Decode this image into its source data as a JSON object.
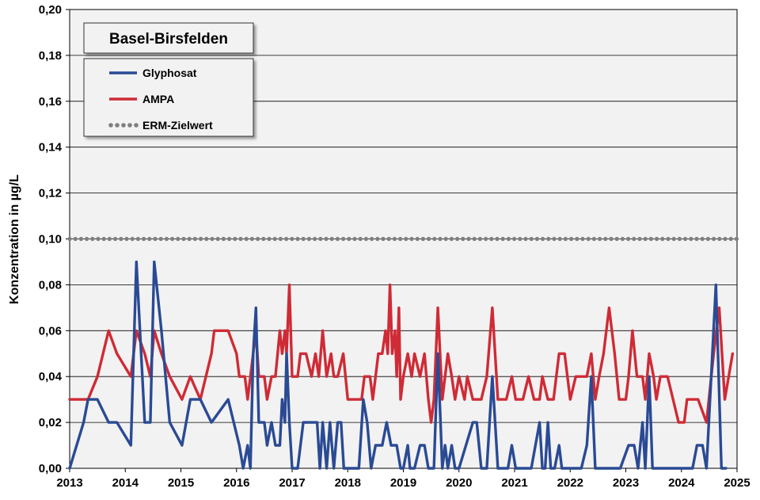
{
  "chart_data": {
    "type": "line",
    "title": "Basel-Birsfelden",
    "ylabel": "Konzentration in µg/L",
    "xlabel": "",
    "xlim": [
      2013,
      2025
    ],
    "ylim": [
      0,
      0.2
    ],
    "x_ticks": [
      "2013",
      "2014",
      "2015",
      "2016",
      "2017",
      "2018",
      "2019",
      "2020",
      "2021",
      "2022",
      "2023",
      "2024",
      "2025"
    ],
    "y_ticks": [
      "0,00",
      "0,02",
      "0,04",
      "0,06",
      "0,08",
      "0,10",
      "0,12",
      "0,14",
      "0,16",
      "0,18",
      "0,20"
    ],
    "grid": "horizontal",
    "legend_position": "top-left",
    "series": [
      {
        "name": "Glyphosat",
        "color": "#2a4a94",
        "style": "solid",
        "points": [
          [
            2013.0,
            0
          ],
          [
            2013.25,
            0.02
          ],
          [
            2013.33,
            0.03
          ],
          [
            2013.5,
            0.03
          ],
          [
            2013.7,
            0.02
          ],
          [
            2013.85,
            0.02
          ],
          [
            2014.1,
            0.01
          ],
          [
            2014.2,
            0.09
          ],
          [
            2014.35,
            0.02
          ],
          [
            2014.45,
            0.02
          ],
          [
            2014.52,
            0.09
          ],
          [
            2014.65,
            0.06
          ],
          [
            2014.8,
            0.02
          ],
          [
            2015.02,
            0.01
          ],
          [
            2015.17,
            0.03
          ],
          [
            2015.35,
            0.03
          ],
          [
            2015.55,
            0.02
          ],
          [
            2015.85,
            0.03
          ],
          [
            2016.05,
            0.01
          ],
          [
            2016.12,
            0
          ],
          [
            2016.2,
            0.01
          ],
          [
            2016.25,
            0
          ],
          [
            2016.3,
            0.05
          ],
          [
            2016.35,
            0.07
          ],
          [
            2016.4,
            0.02
          ],
          [
            2016.5,
            0.02
          ],
          [
            2016.55,
            0.01
          ],
          [
            2016.63,
            0.02
          ],
          [
            2016.7,
            0.01
          ],
          [
            2016.78,
            0.01
          ],
          [
            2016.82,
            0.03
          ],
          [
            2016.87,
            0.02
          ],
          [
            2016.9,
            0.05
          ],
          [
            2016.95,
            0.02
          ],
          [
            2017.0,
            0
          ],
          [
            2017.1,
            0
          ],
          [
            2017.2,
            0.02
          ],
          [
            2017.45,
            0.02
          ],
          [
            2017.5,
            0
          ],
          [
            2017.55,
            0.02
          ],
          [
            2017.62,
            0
          ],
          [
            2017.68,
            0.02
          ],
          [
            2017.75,
            0
          ],
          [
            2017.82,
            0.02
          ],
          [
            2017.88,
            0.02
          ],
          [
            2017.93,
            0
          ],
          [
            2018.0,
            0
          ],
          [
            2018.2,
            0
          ],
          [
            2018.28,
            0.03
          ],
          [
            2018.35,
            0.02
          ],
          [
            2018.42,
            0
          ],
          [
            2018.5,
            0.01
          ],
          [
            2018.62,
            0.01
          ],
          [
            2018.7,
            0.02
          ],
          [
            2018.78,
            0.01
          ],
          [
            2018.88,
            0.01
          ],
          [
            2018.95,
            0
          ],
          [
            2019.0,
            0
          ],
          [
            2019.08,
            0.01
          ],
          [
            2019.12,
            0
          ],
          [
            2019.2,
            0
          ],
          [
            2019.3,
            0.01
          ],
          [
            2019.38,
            0.01
          ],
          [
            2019.45,
            0
          ],
          [
            2019.55,
            0
          ],
          [
            2019.62,
            0.05
          ],
          [
            2019.7,
            0
          ],
          [
            2019.75,
            0.01
          ],
          [
            2019.8,
            0
          ],
          [
            2019.87,
            0.01
          ],
          [
            2019.93,
            0
          ],
          [
            2020.0,
            0
          ],
          [
            2020.25,
            0.02
          ],
          [
            2020.32,
            0.02
          ],
          [
            2020.4,
            0
          ],
          [
            2020.5,
            0
          ],
          [
            2020.6,
            0.04
          ],
          [
            2020.7,
            0
          ],
          [
            2020.88,
            0
          ],
          [
            2020.95,
            0.01
          ],
          [
            2021.02,
            0
          ],
          [
            2021.3,
            0
          ],
          [
            2021.45,
            0.02
          ],
          [
            2021.5,
            0
          ],
          [
            2021.55,
            0
          ],
          [
            2021.6,
            0.02
          ],
          [
            2021.65,
            0
          ],
          [
            2021.72,
            0
          ],
          [
            2021.8,
            0.01
          ],
          [
            2021.85,
            0
          ],
          [
            2022.0,
            0
          ],
          [
            2022.1,
            0
          ],
          [
            2022.15,
            0
          ],
          [
            2022.2,
            0
          ],
          [
            2022.3,
            0.01
          ],
          [
            2022.38,
            0.04
          ],
          [
            2022.45,
            0
          ],
          [
            2022.5,
            0
          ],
          [
            2022.7,
            0
          ],
          [
            2022.9,
            0
          ],
          [
            2023.05,
            0.01
          ],
          [
            2023.15,
            0.01
          ],
          [
            2023.22,
            0
          ],
          [
            2023.3,
            0.02
          ],
          [
            2023.35,
            0
          ],
          [
            2023.42,
            0.04
          ],
          [
            2023.48,
            0
          ],
          [
            2023.6,
            0
          ],
          [
            2023.8,
            0
          ],
          [
            2024.0,
            0
          ],
          [
            2024.2,
            0
          ],
          [
            2024.28,
            0.01
          ],
          [
            2024.38,
            0.01
          ],
          [
            2024.45,
            0
          ],
          [
            2024.62,
            0.08
          ],
          [
            2024.72,
            0
          ],
          [
            2024.8,
            0
          ]
        ]
      },
      {
        "name": "AMPA",
        "color": "#cf2b36",
        "style": "solid",
        "points": [
          [
            2013.0,
            0.03
          ],
          [
            2013.33,
            0.03
          ],
          [
            2013.5,
            0.04
          ],
          [
            2013.7,
            0.06
          ],
          [
            2013.85,
            0.05
          ],
          [
            2014.1,
            0.04
          ],
          [
            2014.2,
            0.06
          ],
          [
            2014.35,
            0.05
          ],
          [
            2014.45,
            0.04
          ],
          [
            2014.52,
            0.06
          ],
          [
            2014.65,
            0.05
          ],
          [
            2014.8,
            0.04
          ],
          [
            2015.02,
            0.03
          ],
          [
            2015.17,
            0.04
          ],
          [
            2015.35,
            0.03
          ],
          [
            2015.55,
            0.05
          ],
          [
            2015.6,
            0.06
          ],
          [
            2015.85,
            0.06
          ],
          [
            2016.0,
            0.05
          ],
          [
            2016.05,
            0.04
          ],
          [
            2016.15,
            0.04
          ],
          [
            2016.2,
            0.03
          ],
          [
            2016.3,
            0.05
          ],
          [
            2016.35,
            0.06
          ],
          [
            2016.4,
            0.04
          ],
          [
            2016.5,
            0.04
          ],
          [
            2016.55,
            0.03
          ],
          [
            2016.63,
            0.04
          ],
          [
            2016.7,
            0.04
          ],
          [
            2016.78,
            0.06
          ],
          [
            2016.82,
            0.05
          ],
          [
            2016.87,
            0.06
          ],
          [
            2016.9,
            0.05
          ],
          [
            2016.95,
            0.08
          ],
          [
            2017.0,
            0.04
          ],
          [
            2017.1,
            0.04
          ],
          [
            2017.15,
            0.05
          ],
          [
            2017.25,
            0.05
          ],
          [
            2017.35,
            0.04
          ],
          [
            2017.42,
            0.05
          ],
          [
            2017.48,
            0.04
          ],
          [
            2017.55,
            0.06
          ],
          [
            2017.62,
            0.04
          ],
          [
            2017.7,
            0.05
          ],
          [
            2017.75,
            0.04
          ],
          [
            2017.82,
            0.04
          ],
          [
            2017.92,
            0.05
          ],
          [
            2018.0,
            0.03
          ],
          [
            2018.25,
            0.03
          ],
          [
            2018.3,
            0.04
          ],
          [
            2018.4,
            0.04
          ],
          [
            2018.45,
            0.03
          ],
          [
            2018.55,
            0.05
          ],
          [
            2018.62,
            0.05
          ],
          [
            2018.68,
            0.06
          ],
          [
            2018.72,
            0.05
          ],
          [
            2018.76,
            0.08
          ],
          [
            2018.8,
            0.05
          ],
          [
            2018.85,
            0.06
          ],
          [
            2018.88,
            0.04
          ],
          [
            2018.92,
            0.07
          ],
          [
            2018.95,
            0.03
          ],
          [
            2019.0,
            0.04
          ],
          [
            2019.08,
            0.05
          ],
          [
            2019.15,
            0.04
          ],
          [
            2019.2,
            0.05
          ],
          [
            2019.3,
            0.04
          ],
          [
            2019.38,
            0.05
          ],
          [
            2019.45,
            0.03
          ],
          [
            2019.5,
            0.02
          ],
          [
            2019.55,
            0.03
          ],
          [
            2019.62,
            0.07
          ],
          [
            2019.7,
            0.03
          ],
          [
            2019.75,
            0.04
          ],
          [
            2019.8,
            0.05
          ],
          [
            2019.87,
            0.04
          ],
          [
            2019.93,
            0.03
          ],
          [
            2020.0,
            0.04
          ],
          [
            2020.1,
            0.03
          ],
          [
            2020.15,
            0.04
          ],
          [
            2020.25,
            0.03
          ],
          [
            2020.4,
            0.03
          ],
          [
            2020.5,
            0.04
          ],
          [
            2020.6,
            0.07
          ],
          [
            2020.7,
            0.03
          ],
          [
            2020.85,
            0.03
          ],
          [
            2020.95,
            0.04
          ],
          [
            2021.02,
            0.03
          ],
          [
            2021.15,
            0.03
          ],
          [
            2021.25,
            0.04
          ],
          [
            2021.35,
            0.03
          ],
          [
            2021.45,
            0.03
          ],
          [
            2021.5,
            0.04
          ],
          [
            2021.6,
            0.03
          ],
          [
            2021.7,
            0.03
          ],
          [
            2021.8,
            0.05
          ],
          [
            2021.9,
            0.05
          ],
          [
            2022.0,
            0.03
          ],
          [
            2022.1,
            0.04
          ],
          [
            2022.3,
            0.04
          ],
          [
            2022.38,
            0.05
          ],
          [
            2022.45,
            0.03
          ],
          [
            2022.52,
            0.04
          ],
          [
            2022.6,
            0.05
          ],
          [
            2022.7,
            0.07
          ],
          [
            2022.8,
            0.05
          ],
          [
            2022.88,
            0.03
          ],
          [
            2023.0,
            0.03
          ],
          [
            2023.05,
            0.04
          ],
          [
            2023.12,
            0.06
          ],
          [
            2023.2,
            0.04
          ],
          [
            2023.3,
            0.04
          ],
          [
            2023.35,
            0.03
          ],
          [
            2023.42,
            0.05
          ],
          [
            2023.5,
            0.04
          ],
          [
            2023.55,
            0.03
          ],
          [
            2023.62,
            0.04
          ],
          [
            2023.75,
            0.04
          ],
          [
            2023.85,
            0.03
          ],
          [
            2023.95,
            0.02
          ],
          [
            2024.05,
            0.02
          ],
          [
            2024.1,
            0.03
          ],
          [
            2024.3,
            0.03
          ],
          [
            2024.45,
            0.02
          ],
          [
            2024.58,
            0.05
          ],
          [
            2024.68,
            0.07
          ],
          [
            2024.78,
            0.03
          ],
          [
            2024.92,
            0.05
          ]
        ]
      },
      {
        "name": "ERM-Zielwert",
        "color": "#7f7f7f",
        "style": "dotted",
        "points": [
          [
            2013.0,
            0.1
          ],
          [
            2025.0,
            0.1
          ]
        ]
      }
    ]
  }
}
